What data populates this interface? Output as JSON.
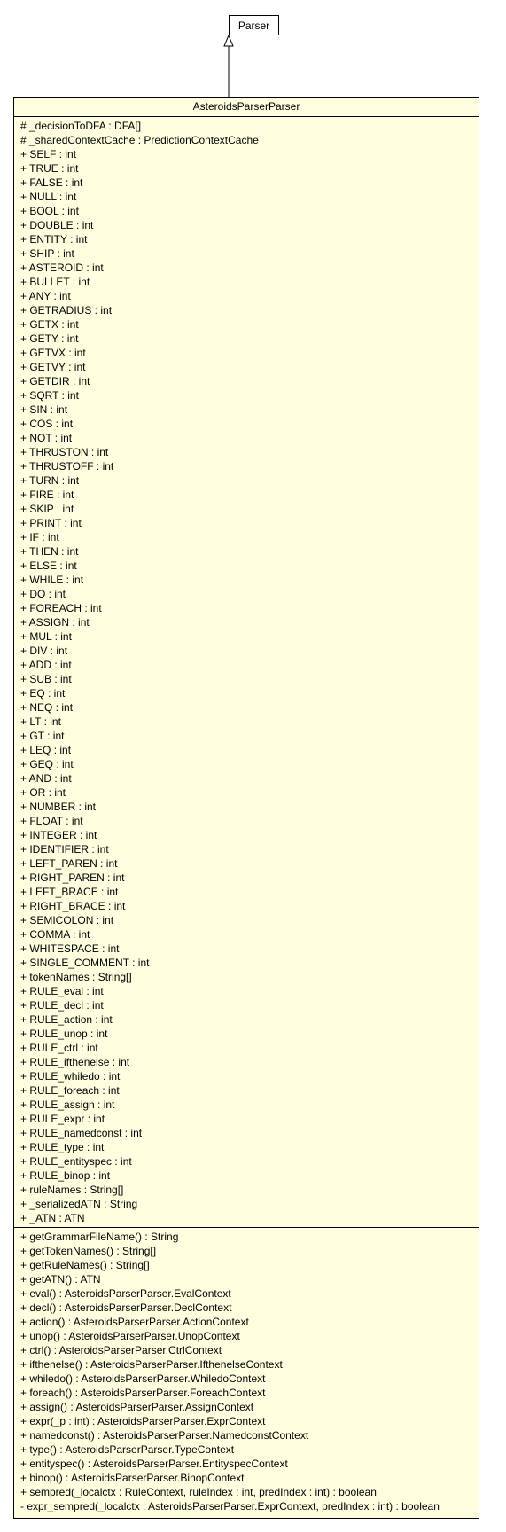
{
  "parent": {
    "name": "Parser"
  },
  "class": {
    "name": "AsteroidsParserParser",
    "attributes": [
      "# _decisionToDFA : DFA[]",
      "# _sharedContextCache : PredictionContextCache",
      "+ SELF : int",
      "+ TRUE : int",
      "+ FALSE : int",
      "+ NULL : int",
      "+ BOOL : int",
      "+ DOUBLE : int",
      "+ ENTITY : int",
      "+ SHIP : int",
      "+ ASTEROID : int",
      "+ BULLET : int",
      "+ ANY : int",
      "+ GETRADIUS : int",
      "+ GETX : int",
      "+ GETY : int",
      "+ GETVX : int",
      "+ GETVY : int",
      "+ GETDIR : int",
      "+ SQRT : int",
      "+ SIN : int",
      "+ COS : int",
      "+ NOT : int",
      "+ THRUSTON : int",
      "+ THRUSTOFF : int",
      "+ TURN : int",
      "+ FIRE : int",
      "+ SKIP : int",
      "+ PRINT : int",
      "+ IF : int",
      "+ THEN : int",
      "+ ELSE : int",
      "+ WHILE : int",
      "+ DO : int",
      "+ FOREACH : int",
      "+ ASSIGN : int",
      "+ MUL : int",
      "+ DIV : int",
      "+ ADD : int",
      "+ SUB : int",
      "+ EQ : int",
      "+ NEQ : int",
      "+ LT : int",
      "+ GT : int",
      "+ LEQ : int",
      "+ GEQ : int",
      "+ AND : int",
      "+ OR : int",
      "+ NUMBER : int",
      "+ FLOAT : int",
      "+ INTEGER : int",
      "+ IDENTIFIER : int",
      "+ LEFT_PAREN : int",
      "+ RIGHT_PAREN : int",
      "+ LEFT_BRACE : int",
      "+ RIGHT_BRACE : int",
      "+ SEMICOLON : int",
      "+ COMMA : int",
      "+ WHITESPACE : int",
      "+ SINGLE_COMMENT : int",
      "+ tokenNames : String[]",
      "+ RULE_eval : int",
      "+ RULE_decl : int",
      "+ RULE_action : int",
      "+ RULE_unop : int",
      "+ RULE_ctrl : int",
      "+ RULE_ifthenelse : int",
      "+ RULE_whiledo : int",
      "+ RULE_foreach : int",
      "+ RULE_assign : int",
      "+ RULE_expr : int",
      "+ RULE_namedconst : int",
      "+ RULE_type : int",
      "+ RULE_entityspec : int",
      "+ RULE_binop : int",
      "+ ruleNames : String[]",
      "+ _serializedATN : String",
      "+ _ATN : ATN"
    ],
    "methods": [
      "+ getGrammarFileName() : String",
      "+ getTokenNames() : String[]",
      "+ getRuleNames() : String[]",
      "+ getATN() : ATN",
      "+ eval() : AsteroidsParserParser.EvalContext",
      "+ decl() : AsteroidsParserParser.DeclContext",
      "+ action() : AsteroidsParserParser.ActionContext",
      "+ unop() : AsteroidsParserParser.UnopContext",
      "+ ctrl() : AsteroidsParserParser.CtrlContext",
      "+ ifthenelse() : AsteroidsParserParser.IfthenelseContext",
      "+ whiledo() : AsteroidsParserParser.WhiledoContext",
      "+ foreach() : AsteroidsParserParser.ForeachContext",
      "+ assign() : AsteroidsParserParser.AssignContext",
      "+ expr(_p : int) : AsteroidsParserParser.ExprContext",
      "+ namedconst() : AsteroidsParserParser.NamedconstContext",
      "+ type() : AsteroidsParserParser.TypeContext",
      "+ entityspec() : AsteroidsParserParser.EntityspecContext",
      "+ binop() : AsteroidsParserParser.BinopContext",
      "+ sempred(_localctx : RuleContext, ruleIndex : int, predIndex : int) : boolean",
      "- expr_sempred(_localctx : AsteroidsParserParser.ExprContext, predIndex : int) : boolean"
    ]
  }
}
